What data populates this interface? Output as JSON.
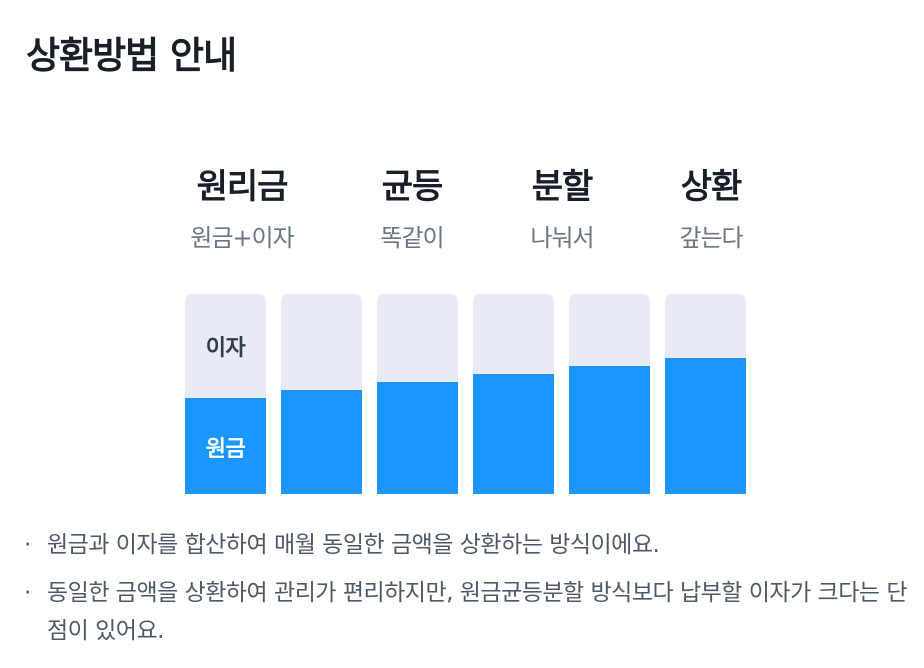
{
  "title": "상환방법 안내",
  "columns": [
    {
      "title": "원리금",
      "subtitle": "원금+이자"
    },
    {
      "title": "균등",
      "subtitle": "똑같이"
    },
    {
      "title": "분할",
      "subtitle": "나눠서"
    },
    {
      "title": "상환",
      "subtitle": "갚는다"
    }
  ],
  "chart_data": {
    "type": "bar",
    "series_labels": {
      "interest": "이자",
      "principal": "원금"
    },
    "principal_fraction": [
      0.48,
      0.52,
      0.56,
      0.6,
      0.64,
      0.68
    ],
    "colors": {
      "principal": "#1b96fe",
      "interest": "#e8ebf5"
    }
  },
  "notes": [
    {
      "bullet": "·",
      "text": "원금과 이자를 합산하여 매월 동일한 금액을 상환하는 방식이에요."
    },
    {
      "bullet": "·",
      "text": "동일한 금액을 상환하여 관리가 편리하지만, 원금균등분할 방식보다 납부할 이자가 크다는 단점이 있어요."
    }
  ]
}
